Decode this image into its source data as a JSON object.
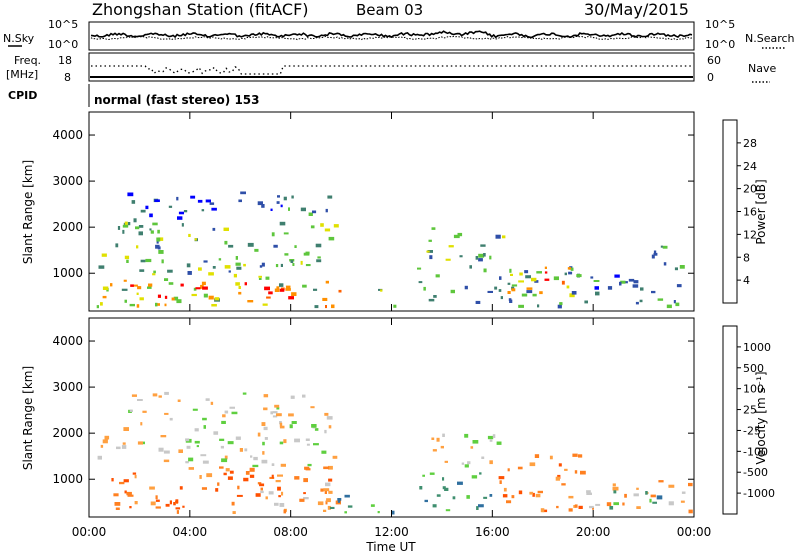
{
  "header": {
    "title": "Zhongshan Station (fitACF)",
    "beam": "Beam 03",
    "date": "30/May/2015"
  },
  "noise_panel": {
    "left_label": "N.Sky",
    "right_label": "N.Search",
    "left_ticks": [
      "10^5",
      "10^0"
    ],
    "right_ticks": [
      "10^5",
      "10^0"
    ]
  },
  "freq_panel": {
    "left_label_1": "Freq.",
    "left_label_2": "[MHz]",
    "left_ticks": [
      "18",
      "8"
    ],
    "right_label": "Nave",
    "right_ticks": [
      "60",
      "0"
    ]
  },
  "cpid_panel": {
    "label": "CPID",
    "text": "normal (fast stereo) 153"
  },
  "chart_data": [
    {
      "type": "heatmap",
      "name": "power",
      "xlabel": "Time UT",
      "ylabel": "Slant Range [km]",
      "x_ticks": [
        "00:00",
        "04:00",
        "08:00",
        "12:00",
        "16:00",
        "20:00",
        "00:00"
      ],
      "y_ticks": [
        "1000",
        "2000",
        "3000",
        "4000"
      ],
      "ylim": [
        180,
        4500
      ],
      "colorbar_label": "Power [dB]",
      "colorbar_ticks": [
        "28",
        "24",
        "20",
        "16",
        "12",
        "8",
        "4"
      ],
      "colors": [
        "#0000ff",
        "#2f4fa8",
        "#3f7f6f",
        "#5ec63c",
        "#e0e000",
        "#ff9000",
        "#ff6000",
        "#ff0000"
      ],
      "blobs": [
        {
          "t0": 0.3,
          "t1": 10.0,
          "r0": 300,
          "r1": 1000,
          "lvl": 0.55
        },
        {
          "t0": 1.5,
          "t1": 4.5,
          "r0": 400,
          "r1": 800,
          "lvl": 0.9
        },
        {
          "t0": 6.0,
          "t1": 8.5,
          "r0": 400,
          "r1": 900,
          "lvl": 0.9
        },
        {
          "t0": 8.8,
          "t1": 10.0,
          "r0": 300,
          "r1": 700,
          "lvl": 0.85
        },
        {
          "t0": 0.3,
          "t1": 10.0,
          "r0": 1000,
          "r1": 1700,
          "lvl": 0.35
        },
        {
          "t0": 1.0,
          "t1": 10.0,
          "r0": 1700,
          "r1": 2200,
          "lvl": 0.4
        },
        {
          "t0": 1.5,
          "t1": 9.5,
          "r0": 2200,
          "r1": 2800,
          "lvl": 0.15
        },
        {
          "t0": 11.0,
          "t1": 12.2,
          "r0": 300,
          "r1": 700,
          "lvl": 0.35
        },
        {
          "t0": 13.0,
          "t1": 16.5,
          "r0": 1300,
          "r1": 2000,
          "lvl": 0.35
        },
        {
          "t0": 13.0,
          "t1": 19.5,
          "r0": 300,
          "r1": 1200,
          "lvl": 0.3
        },
        {
          "t0": 16.5,
          "t1": 19.0,
          "r0": 600,
          "r1": 1200,
          "lvl": 0.6
        },
        {
          "t0": 18.0,
          "t1": 19.0,
          "r0": 700,
          "r1": 1100,
          "lvl": 0.8
        },
        {
          "t0": 19.5,
          "t1": 23.8,
          "r0": 300,
          "r1": 1000,
          "lvl": 0.25
        },
        {
          "t0": 21.5,
          "t1": 23.8,
          "r0": 1100,
          "r1": 1600,
          "lvl": 0.3
        }
      ]
    },
    {
      "type": "heatmap",
      "name": "velocity",
      "xlabel": "Time UT",
      "ylabel": "Slant Range [km]",
      "x_ticks": [
        "00:00",
        "04:00",
        "08:00",
        "12:00",
        "16:00",
        "20:00",
        "00:00"
      ],
      "y_ticks": [
        "1000",
        "2000",
        "3000",
        "4000"
      ],
      "ylim": [
        180,
        4500
      ],
      "colorbar_label": "Velocity [m s⁻¹]",
      "colorbar_ticks": [
        "1000",
        "500",
        "100",
        "25",
        "-25",
        "-100",
        "-500",
        "-1000"
      ],
      "colors": [
        "#1f3fbf",
        "#2f6f9f",
        "#3f8f6f",
        "#5fcf3f",
        "#c8c8c8",
        "#ffa040",
        "#ff8020",
        "#ff5000",
        "#ff0000"
      ],
      "blobs": [
        {
          "t0": 0.3,
          "t1": 9.8,
          "r0": 300,
          "r1": 1300,
          "lvl": 6
        },
        {
          "t0": 6.5,
          "t1": 9.8,
          "r0": 300,
          "r1": 1000,
          "lvl": 5
        },
        {
          "t0": 9.2,
          "t1": 10.0,
          "r0": 300,
          "r1": 900,
          "lvl": 1
        },
        {
          "t0": 0.3,
          "t1": 10.0,
          "r0": 1300,
          "r1": 2200,
          "lvl": 4
        },
        {
          "t0": 1.5,
          "t1": 9.5,
          "r0": 2200,
          "r1": 2900,
          "lvl": 4
        },
        {
          "t0": 10.0,
          "t1": 12.2,
          "r0": 300,
          "r1": 700,
          "lvl": 2
        },
        {
          "t0": 13.0,
          "t1": 16.5,
          "r0": 1300,
          "r1": 2000,
          "lvl": 4
        },
        {
          "t0": 13.0,
          "t1": 16.0,
          "r0": 300,
          "r1": 1200,
          "lvl": 2
        },
        {
          "t0": 16.0,
          "t1": 19.5,
          "r0": 300,
          "r1": 1600,
          "lvl": 6
        },
        {
          "t0": 19.5,
          "t1": 23.8,
          "r0": 300,
          "r1": 1000,
          "lvl": 5
        },
        {
          "t0": 20.5,
          "t1": 23.0,
          "r0": 400,
          "r1": 800,
          "lvl": 2
        }
      ]
    }
  ]
}
